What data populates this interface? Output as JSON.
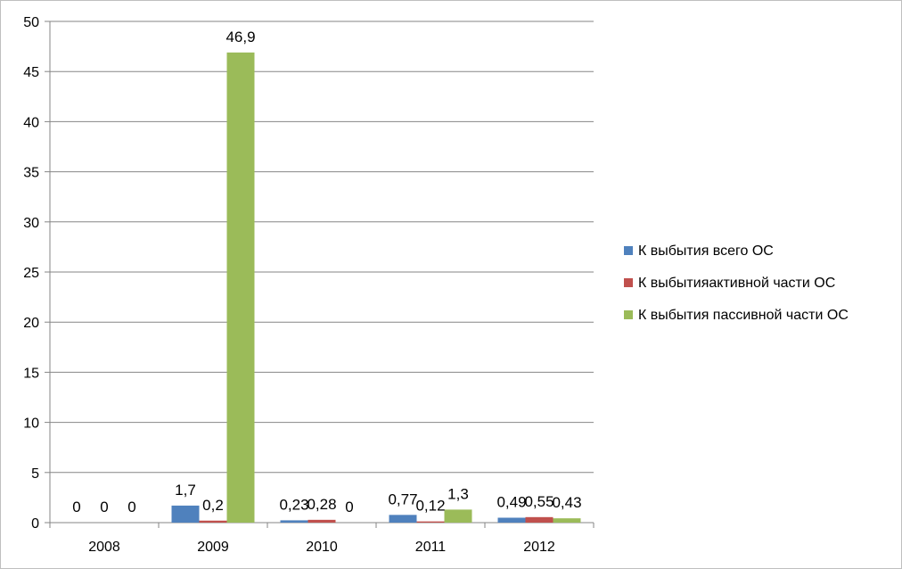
{
  "chart_data": {
    "type": "bar",
    "title": "",
    "xlabel": "",
    "ylabel": "",
    "categories": [
      "2008",
      "2009",
      "2010",
      "2011",
      "2012"
    ],
    "series": [
      {
        "name": "К выбытия всего ОС",
        "color": "#4f81bd",
        "values": [
          0,
          1.7,
          0.23,
          0.77,
          0.49
        ],
        "labels": [
          "0",
          "1,7",
          "0,23",
          "0,77",
          "0,49"
        ]
      },
      {
        "name": "К выбытияактивной части ОС",
        "color": "#c0504d",
        "values": [
          0,
          0.2,
          0.28,
          0.12,
          0.55
        ],
        "labels": [
          "0",
          "0,2",
          "0,28",
          "0,12",
          "0,55"
        ]
      },
      {
        "name": "К выбытия пассивной части ОС",
        "color": "#9bbb59",
        "values": [
          0,
          46.9,
          0,
          1.3,
          0.43
        ],
        "labels": [
          "0",
          "46,9",
          "0",
          "1,3",
          "0,43"
        ]
      }
    ],
    "ylim": [
      0,
      50
    ],
    "yticks": [
      "0",
      "5",
      "10",
      "15",
      "20",
      "25",
      "30",
      "35",
      "40",
      "45",
      "50"
    ],
    "grid": true,
    "legend_position": "right"
  }
}
